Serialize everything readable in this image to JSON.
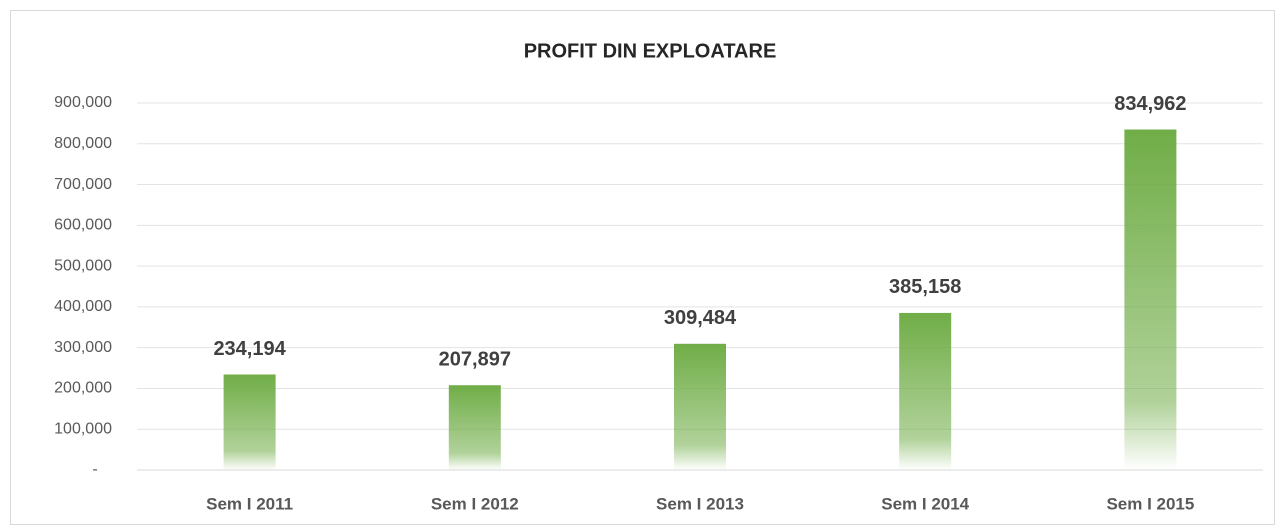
{
  "chart_data": {
    "type": "bar",
    "title": "PROFIT DIN EXPLOATARE",
    "categories": [
      "Sem I 2011",
      "Sem I 2012",
      "Sem I 2013",
      "Sem I 2014",
      "Sem I 2015"
    ],
    "values": [
      234194,
      207897,
      309484,
      385158,
      834962
    ],
    "value_labels": [
      "234,194",
      "207,897",
      "309,484",
      "385,158",
      "834,962"
    ],
    "color": "#70ad47",
    "ylim": [
      0,
      900000
    ],
    "yticks": [
      {
        "value": 0,
        "label": "-"
      },
      {
        "value": 100000,
        "label": "100,000"
      },
      {
        "value": 200000,
        "label": "200,000"
      },
      {
        "value": 300000,
        "label": "300,000"
      },
      {
        "value": 400000,
        "label": "400,000"
      },
      {
        "value": 500000,
        "label": "500,000"
      },
      {
        "value": 600000,
        "label": "600,000"
      },
      {
        "value": 700000,
        "label": "700,000"
      },
      {
        "value": 800000,
        "label": "800,000"
      },
      {
        "value": 900000,
        "label": "900,000"
      }
    ],
    "grid": true
  }
}
